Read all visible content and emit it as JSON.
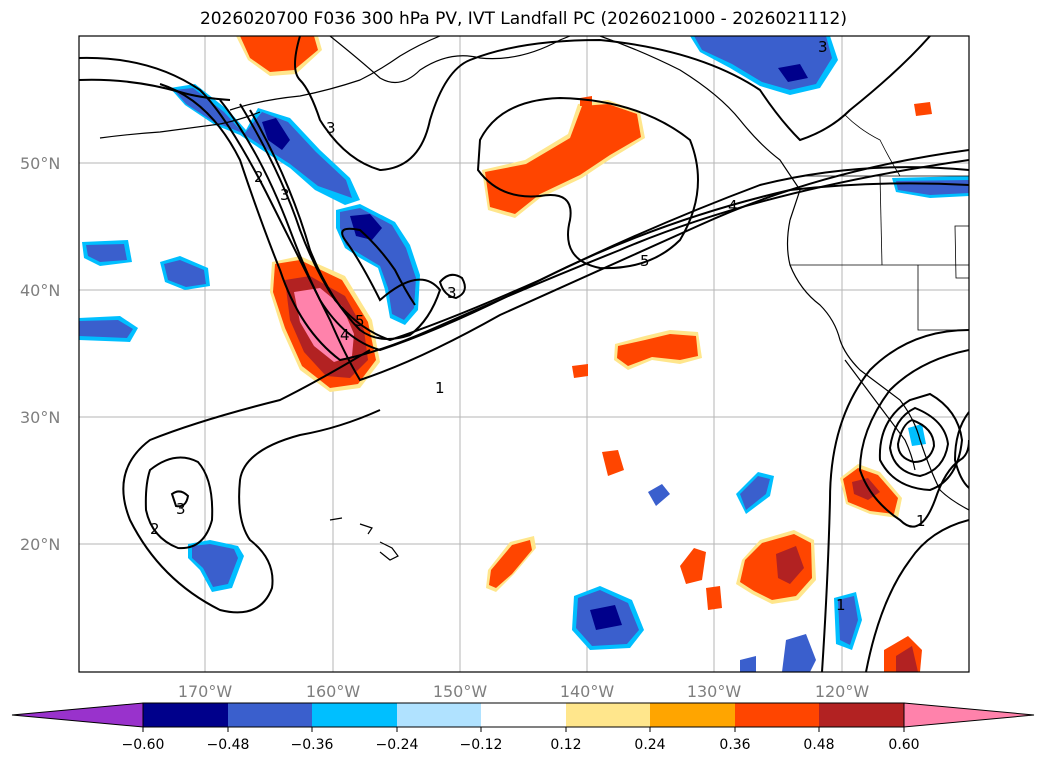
{
  "title": "2026020700 F036 300 hPa PV, IVT Landfall PC (2026021000 - 2026021112)",
  "map": {
    "lat_labels": [
      "50°N",
      "40°N",
      "30°N",
      "20°N"
    ],
    "lon_labels": [
      "170°W",
      "160°W",
      "150°W",
      "140°W",
      "130°W",
      "120°W"
    ],
    "contour_labels": [
      "3",
      "2",
      "3",
      "4",
      "5",
      "3",
      "1",
      "4",
      "5",
      "3",
      "2",
      "1",
      "1",
      "3"
    ],
    "colors": {
      "deep_blue": "#00008b",
      "blue": "#3a5fcd",
      "light_blue": "#00bfff",
      "pale_blue": "#b0e2ff",
      "pale_yellow": "#ffe68c",
      "orange": "#ffa500",
      "red_orange": "#ff4500",
      "dark_red": "#b22222",
      "pink": "#ff82ab"
    }
  },
  "colorbar": {
    "labels": [
      "−0.60",
      "−0.48",
      "−0.36",
      "−0.24",
      "−0.12",
      "0.12",
      "0.24",
      "0.36",
      "0.48",
      "0.60"
    ],
    "colors": [
      "#9932cc",
      "#00008b",
      "#3a5fcd",
      "#00bfff",
      "#b0e2ff",
      "#ffffff",
      "#ffe68c",
      "#ffa500",
      "#ff4500",
      "#b22222",
      "#ff82ab"
    ]
  }
}
